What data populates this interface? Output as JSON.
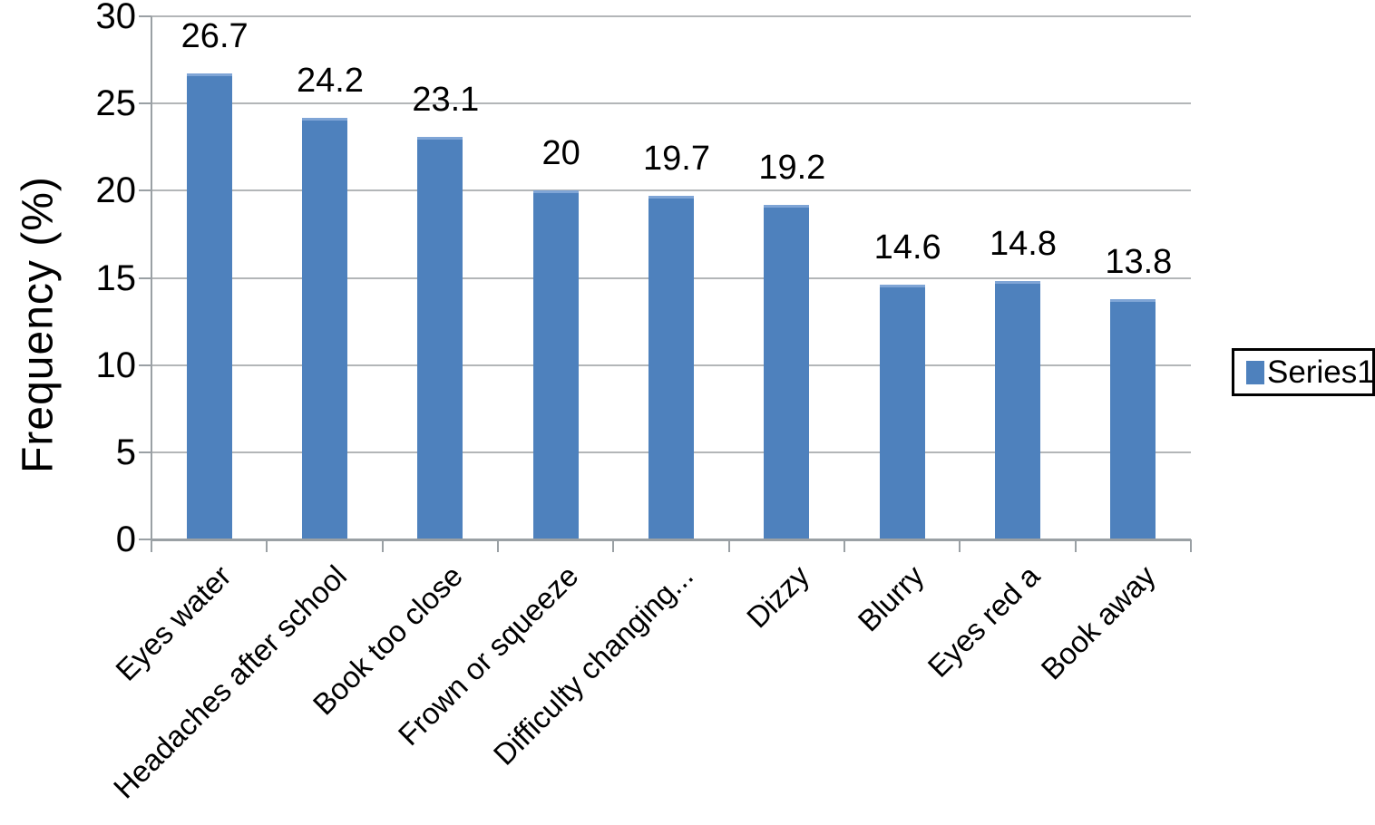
{
  "chart_data": {
    "type": "bar",
    "title": "",
    "xlabel": "",
    "ylabel": "Frequency (%)",
    "categories": [
      "Eyes water",
      "Headaches after school",
      "Book too close",
      "Frown or squeeze",
      "Difficulty changing...",
      "Dizzy",
      "Blurry",
      "Eyes red a",
      "Book away"
    ],
    "series": [
      {
        "name": "Series1",
        "values": [
          26.7,
          24.2,
          23.1,
          20,
          19.7,
          19.2,
          14.6,
          14.8,
          13.8
        ]
      }
    ],
    "data_labels": [
      "26.7",
      "24.2",
      "23.1",
      "20",
      "19.7",
      "19.2",
      "14.6",
      "14.8",
      "13.8"
    ],
    "y_ticks": [
      0,
      5,
      10,
      15,
      20,
      25,
      30
    ],
    "ylim": [
      0,
      30
    ],
    "grid": true,
    "legend_position": "right"
  },
  "legend": {
    "label": "Series1"
  },
  "colors": {
    "bar": "#4e81bd",
    "bar_top_edge": "#7fa5d6",
    "gridline": "#b3b6b8",
    "axis": "#9aa0a4",
    "text": "#000000",
    "background": "#ffffff"
  }
}
